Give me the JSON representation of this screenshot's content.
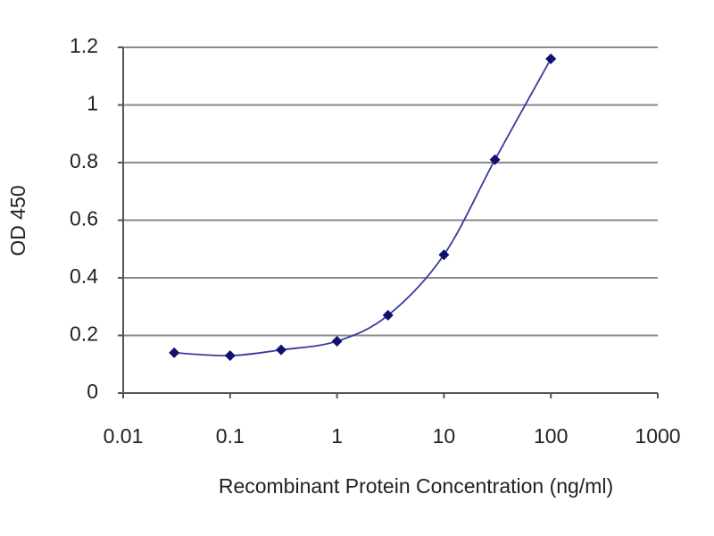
{
  "chart_data": {
    "type": "line",
    "xlabel": "Recombinant Protein Concentration (ng/ml)",
    "ylabel": "OD 450",
    "x": [
      0.03,
      0.1,
      0.3,
      1,
      3,
      10,
      30,
      100
    ],
    "values": [
      0.14,
      0.13,
      0.15,
      0.18,
      0.27,
      0.48,
      0.81,
      1.16
    ],
    "color": "#10106e",
    "xlog": true,
    "xlim": [
      0.01,
      1000
    ],
    "xticks": [
      0.01,
      0.1,
      1,
      10,
      100,
      1000
    ],
    "ylim": [
      0,
      1.2
    ],
    "yticks": [
      0,
      0.2,
      0.4,
      0.6,
      0.8,
      1,
      1.2
    ],
    "grid": true
  }
}
